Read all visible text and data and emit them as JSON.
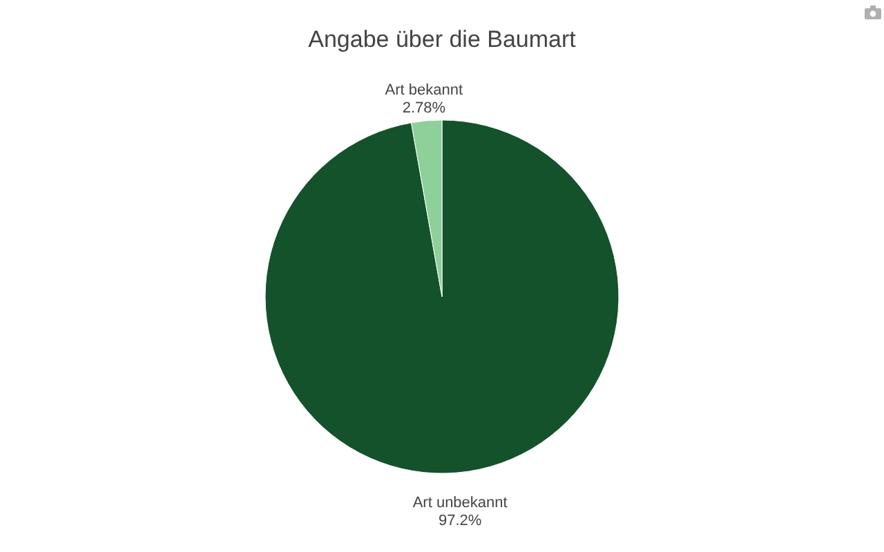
{
  "chart_data": {
    "type": "pie",
    "title": "Angabe über die Baumart",
    "categories": [
      "Art unbekannt",
      "Art bekannt"
    ],
    "values": [
      97.2,
      2.78
    ],
    "value_labels": [
      "97.2%",
      "2.78%"
    ],
    "colors": [
      "#13522a",
      "#8fcf99"
    ]
  }
}
